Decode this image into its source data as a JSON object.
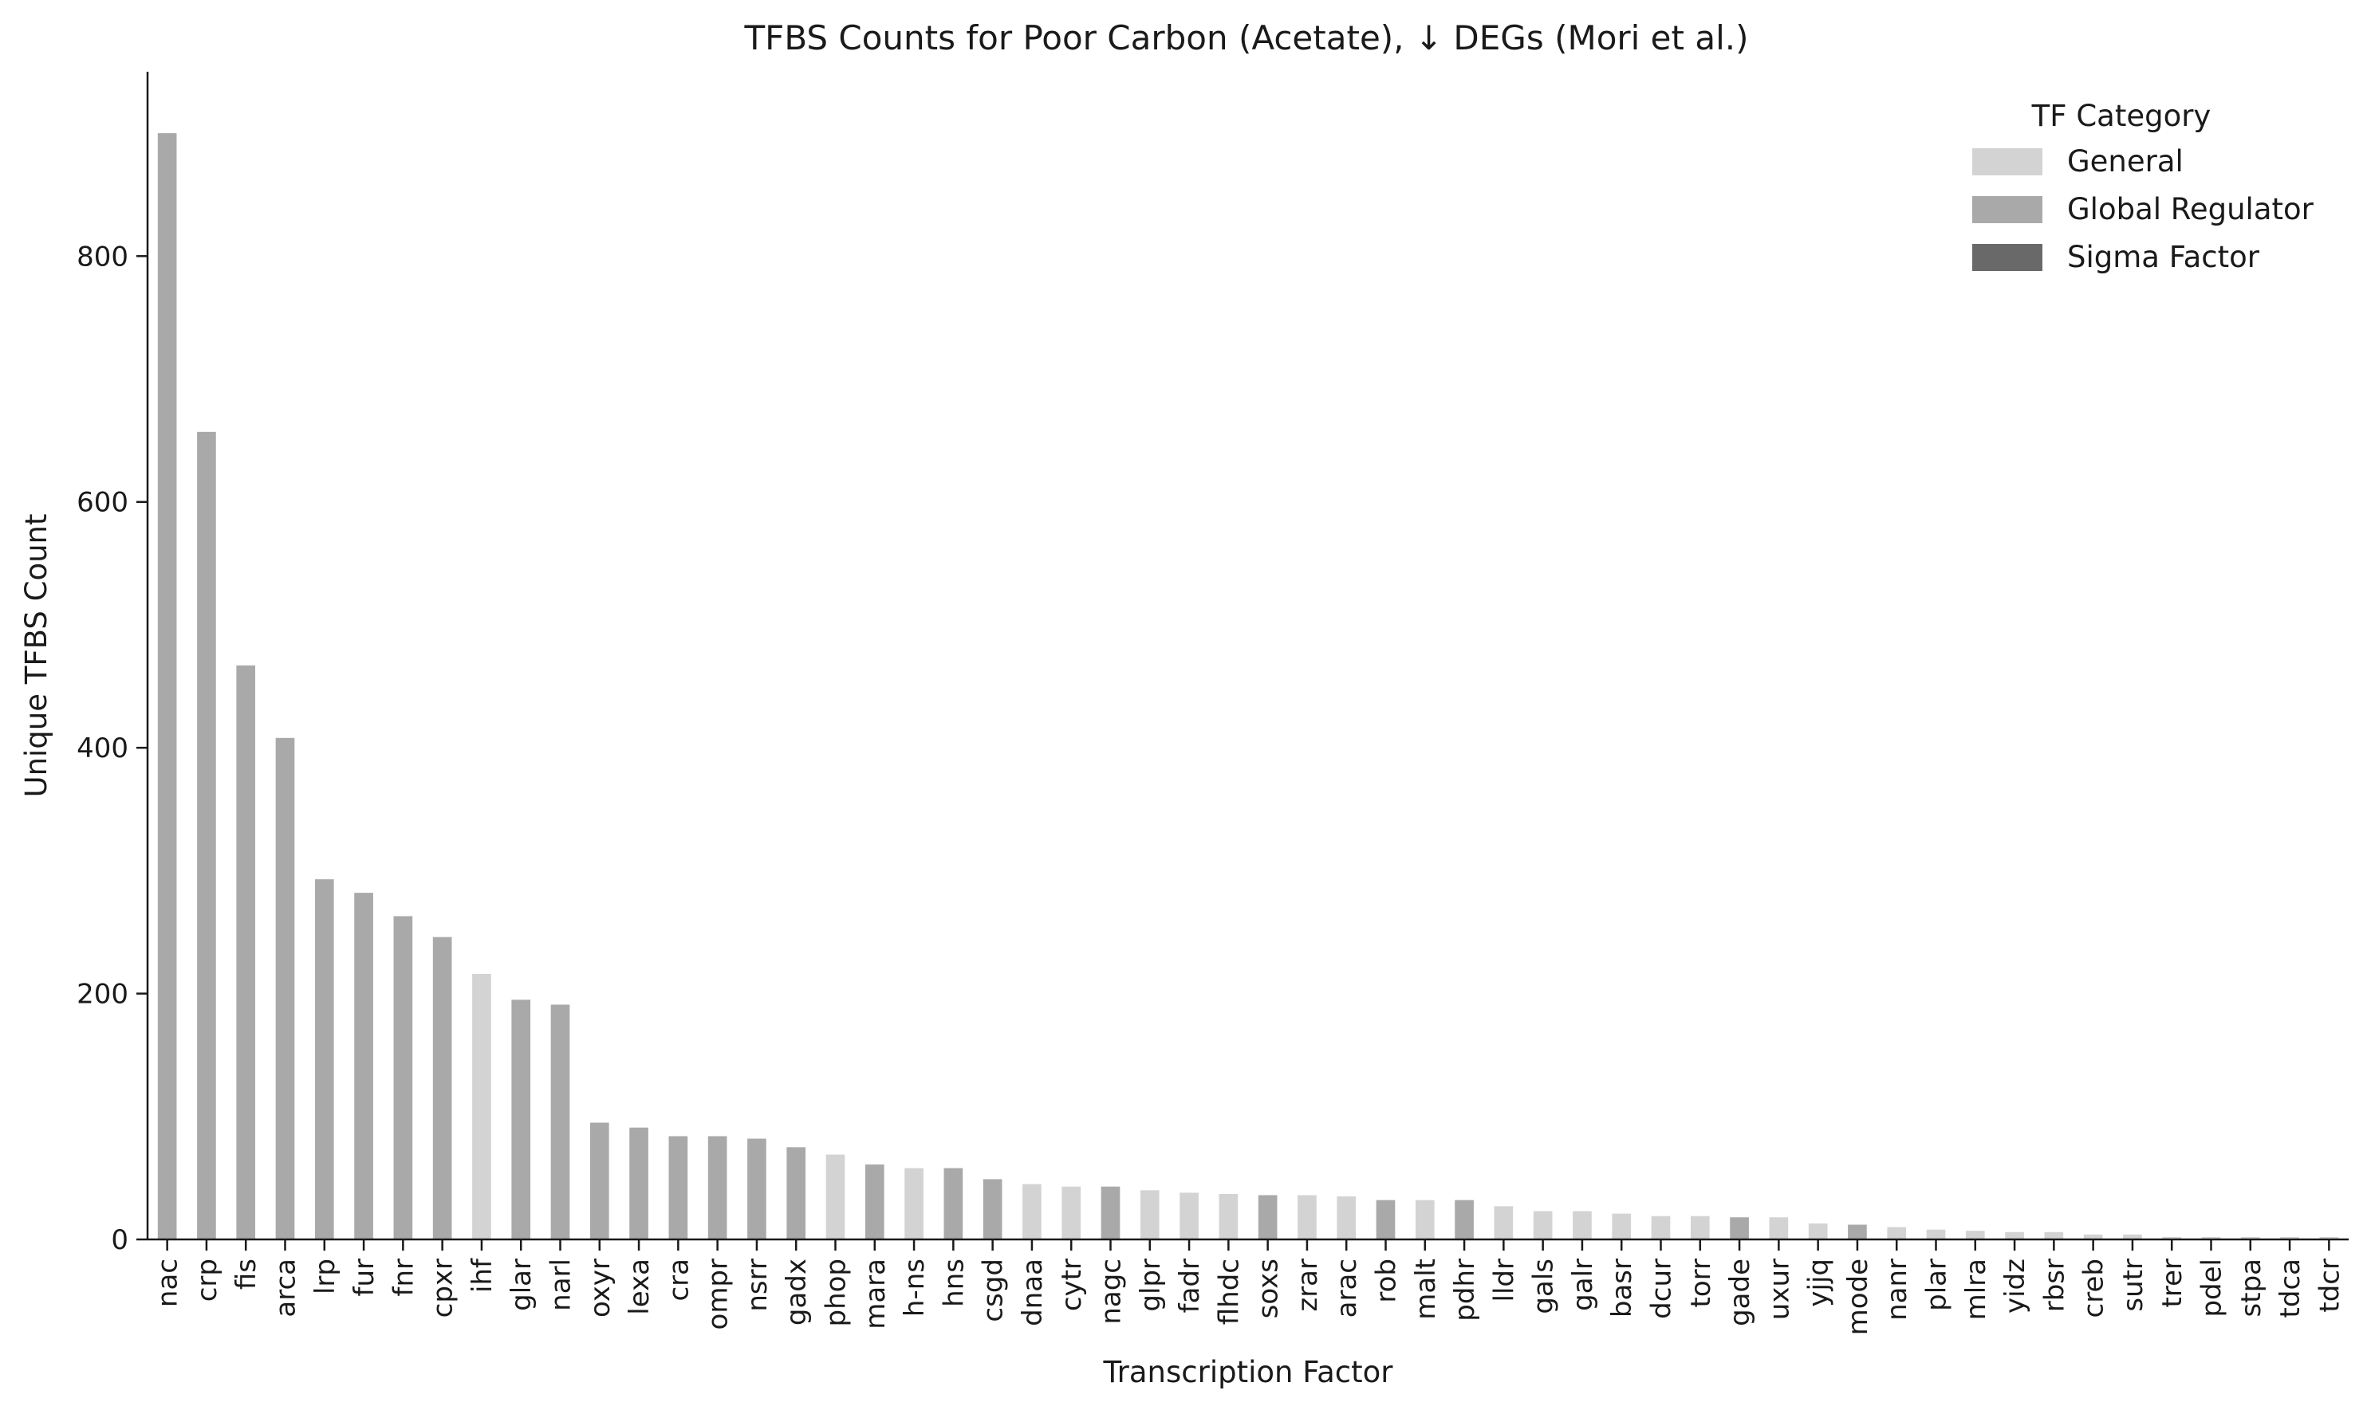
{
  "chart_data": {
    "type": "bar",
    "title": "TFBS Counts for Poor Carbon (Acetate), ↓ DEGs (Mori et al.)",
    "xlabel": "Transcription Factor",
    "ylabel": "Unique TFBS Count",
    "ylim": [
      0,
      950
    ],
    "yticks": [
      0,
      200,
      400,
      600,
      800
    ],
    "grid": false,
    "legend": {
      "title": "TF Category",
      "placement": "top-right",
      "entries": [
        {
          "name": "General",
          "color": "#d3d3d3"
        },
        {
          "name": "Global Regulator",
          "color": "#a9a9a9"
        },
        {
          "name": "Sigma Factor",
          "color": "#696969"
        }
      ]
    },
    "categories": [
      "nac",
      "crp",
      "fis",
      "arca",
      "lrp",
      "fur",
      "fnr",
      "cpxr",
      "ihf",
      "glar",
      "narl",
      "oxyr",
      "lexa",
      "cra",
      "ompr",
      "nsrr",
      "gadx",
      "phop",
      "mara",
      "h-ns",
      "hns",
      "csgd",
      "dnaa",
      "cytr",
      "nagc",
      "glpr",
      "fadr",
      "flhdc",
      "soxs",
      "zrar",
      "arac",
      "rob",
      "malt",
      "pdhr",
      "lldr",
      "gals",
      "galr",
      "basr",
      "dcur",
      "torr",
      "gade",
      "uxur",
      "yjjq",
      "mode",
      "nanr",
      "plar",
      "mlra",
      "yidz",
      "rbsr",
      "creb",
      "sutr",
      "trer",
      "pdel",
      "stpa",
      "tdca",
      "tdcr"
    ],
    "values": [
      900,
      657,
      467,
      408,
      293,
      282,
      263,
      246,
      216,
      195,
      191,
      95,
      91,
      84,
      84,
      82,
      75,
      69,
      61,
      58,
      58,
      49,
      45,
      43,
      43,
      40,
      38,
      37,
      36,
      36,
      35,
      32,
      32,
      32,
      27,
      23,
      23,
      21,
      19,
      19,
      18,
      18,
      13,
      12,
      10,
      8,
      7,
      6,
      6,
      4,
      4,
      2,
      2,
      2,
      2,
      2
    ],
    "bar_categories": [
      "Global Regulator",
      "Global Regulator",
      "Global Regulator",
      "Global Regulator",
      "Global Regulator",
      "Global Regulator",
      "Global Regulator",
      "Global Regulator",
      "General",
      "Global Regulator",
      "Global Regulator",
      "Global Regulator",
      "Global Regulator",
      "Global Regulator",
      "Global Regulator",
      "Global Regulator",
      "Global Regulator",
      "General",
      "Global Regulator",
      "General",
      "Global Regulator",
      "Global Regulator",
      "General",
      "General",
      "Global Regulator",
      "General",
      "General",
      "General",
      "Global Regulator",
      "General",
      "General",
      "Global Regulator",
      "General",
      "Global Regulator",
      "General",
      "General",
      "General",
      "General",
      "General",
      "General",
      "Global Regulator",
      "General",
      "General",
      "Global Regulator",
      "General",
      "General",
      "General",
      "General",
      "General",
      "General",
      "General",
      "General",
      "General",
      "General",
      "General",
      "General"
    ]
  }
}
